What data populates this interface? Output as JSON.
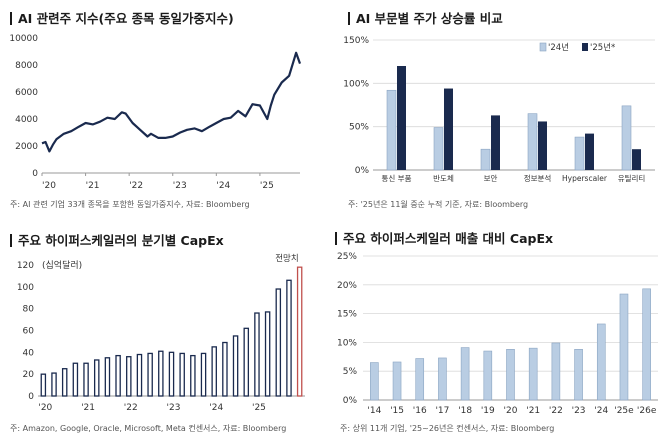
{
  "colors": {
    "navy": "#1a2a4e",
    "light": "#b9cde3",
    "red_edge": "#c0504d",
    "grid": "#d9d9d9",
    "axis": "#999999"
  },
  "chart_data": [
    {
      "type": "line",
      "title": "AI 관련주 지수(주요 종목 동일가중지수)",
      "note": "주: AI 관련 기업 33개 종목을 포함한 동일가중지수, 자료: Bloomberg",
      "ylim": [
        0,
        10000
      ],
      "yticks": [
        0,
        2000,
        4000,
        6000,
        8000,
        10000
      ],
      "xlim": [
        2020,
        2025.92
      ],
      "xticks": [
        {
          "v": 2020,
          "label": "'20"
        },
        {
          "v": 2021,
          "label": "'21"
        },
        {
          "v": 2022,
          "label": "'22"
        },
        {
          "v": 2023,
          "label": "'23"
        },
        {
          "v": 2024,
          "label": "'24"
        },
        {
          "v": 2025,
          "label": "'25"
        }
      ],
      "series": [
        {
          "name": "index",
          "x": [
            2020.0,
            2020.08,
            2020.17,
            2020.25,
            2020.33,
            2020.5,
            2020.67,
            2020.83,
            2021.0,
            2021.17,
            2021.33,
            2021.5,
            2021.67,
            2021.83,
            2021.92,
            2022.08,
            2022.25,
            2022.42,
            2022.5,
            2022.67,
            2022.83,
            2023.0,
            2023.17,
            2023.33,
            2023.5,
            2023.67,
            2023.83,
            2024.0,
            2024.17,
            2024.33,
            2024.5,
            2024.67,
            2024.83,
            2025.0,
            2025.17,
            2025.25,
            2025.33,
            2025.5,
            2025.67,
            2025.83,
            2025.92
          ],
          "y": [
            2200,
            2300,
            1600,
            2100,
            2500,
            2900,
            3100,
            3400,
            3700,
            3600,
            3800,
            4100,
            4000,
            4500,
            4400,
            3700,
            3200,
            2700,
            2900,
            2600,
            2600,
            2700,
            3000,
            3200,
            3300,
            3100,
            3400,
            3700,
            4000,
            4100,
            4600,
            4200,
            5100,
            5000,
            4000,
            5000,
            5800,
            6700,
            7200,
            8900,
            8100
          ]
        }
      ]
    },
    {
      "type": "bar",
      "title": "AI 부문별 주가 상승률 비교",
      "note": "주: '25년은 11월 중순 누적 기준, 자료: Bloomberg",
      "categories": [
        "통신 부품",
        "반도체",
        "보안",
        "정보분석",
        "Hyperscaler",
        "유틸리티"
      ],
      "series": [
        {
          "name": "'24년",
          "values": [
            92,
            49,
            24,
            65,
            38,
            74
          ]
        },
        {
          "name": "'25년*",
          "values": [
            120,
            94,
            63,
            56,
            42,
            24
          ]
        }
      ],
      "ylim": [
        0,
        150
      ],
      "yticks": [
        {
          "v": 0,
          "label": "0%"
        },
        {
          "v": 50,
          "label": "50%"
        },
        {
          "v": 100,
          "label": "100%"
        },
        {
          "v": 150,
          "label": "150%"
        }
      ]
    },
    {
      "type": "bar",
      "title": "주요 하이퍼스케일러의 분기별 CapEx",
      "unit_label": "(십억달러)",
      "annotation": "전망치",
      "note": "주: Amazon, Google, Oracle, Microsoft, Meta 컨센서스, 자료: Bloomberg",
      "values": [
        20,
        21,
        25,
        30,
        30,
        33,
        35,
        37,
        36,
        38,
        39,
        41,
        40,
        39,
        37,
        39,
        45,
        49,
        55,
        62,
        76,
        77,
        98,
        106,
        118
      ],
      "forecast_index": 24,
      "ylim": [
        0,
        120
      ],
      "yticks": [
        0,
        20,
        40,
        60,
        80,
        100,
        120
      ],
      "xlabels": [
        {
          "idx": 0,
          "label": "'20"
        },
        {
          "idx": 4,
          "label": "'21"
        },
        {
          "idx": 8,
          "label": "'22"
        },
        {
          "idx": 12,
          "label": "'23"
        },
        {
          "idx": 16,
          "label": "'24"
        },
        {
          "idx": 20,
          "label": "'25"
        }
      ]
    },
    {
      "type": "bar",
      "title": "주요 하이퍼스케일러 매출 대비 CapEx",
      "note": "주: 상위 11개 기업, '25~26년은 컨센서스, 자료: Bloomberg",
      "categories": [
        "'14",
        "'15",
        "'16",
        "'17",
        "'18",
        "'19",
        "'20",
        "'21",
        "'22",
        "'23",
        "'24",
        "'25e",
        "'26e"
      ],
      "values": [
        6.5,
        6.6,
        7.2,
        7.3,
        9.1,
        8.5,
        8.8,
        9.0,
        9.9,
        8.8,
        13.2,
        18.4,
        19.3
      ],
      "ylim": [
        0,
        25
      ],
      "yticks": [
        {
          "v": 0,
          "label": "0%"
        },
        {
          "v": 5,
          "label": "5%"
        },
        {
          "v": 10,
          "label": "10%"
        },
        {
          "v": 15,
          "label": "15%"
        },
        {
          "v": 20,
          "label": "20%"
        },
        {
          "v": 25,
          "label": "25%"
        }
      ]
    }
  ]
}
